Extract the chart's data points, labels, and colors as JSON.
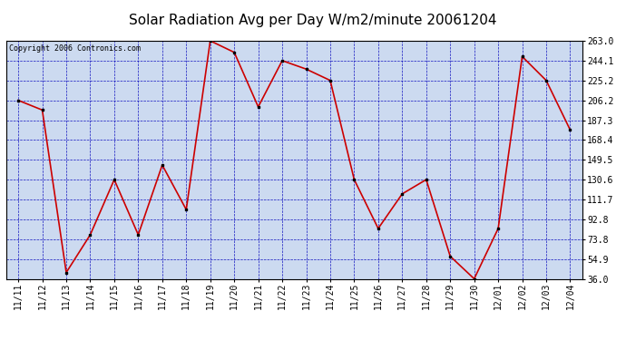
{
  "title": "Solar Radiation Avg per Day W/m2/minute 20061204",
  "copyright": "Copyright 2006 Contronics.com",
  "x_labels": [
    "11/11",
    "11/12",
    "11/13",
    "11/14",
    "11/15",
    "11/16",
    "11/17",
    "11/18",
    "11/19",
    "11/20",
    "11/21",
    "11/22",
    "11/23",
    "11/24",
    "11/25",
    "11/26",
    "11/27",
    "11/28",
    "11/29",
    "11/30",
    "12/01",
    "12/02",
    "12/03",
    "12/04"
  ],
  "y_values": [
    206.2,
    197.0,
    42.0,
    78.0,
    130.6,
    78.0,
    144.5,
    102.0,
    263.0,
    252.0,
    200.0,
    244.1,
    236.0,
    225.2,
    130.6,
    84.0,
    117.0,
    130.6,
    57.5,
    36.0,
    84.0,
    248.0,
    225.2,
    178.0
  ],
  "line_color": "#cc0000",
  "marker_color": "#000000",
  "bg_color": "#ccdaf0",
  "fig_bg": "#ffffff",
  "grid_color": "#0000bb",
  "title_color": "#000000",
  "y_min": 36.0,
  "y_max": 263.0,
  "y_ticks": [
    36.0,
    54.9,
    73.8,
    92.8,
    111.7,
    130.6,
    149.5,
    168.4,
    187.3,
    206.2,
    225.2,
    244.1,
    263.0
  ],
  "title_fontsize": 11,
  "tick_fontsize": 7,
  "copyright_fontsize": 6
}
